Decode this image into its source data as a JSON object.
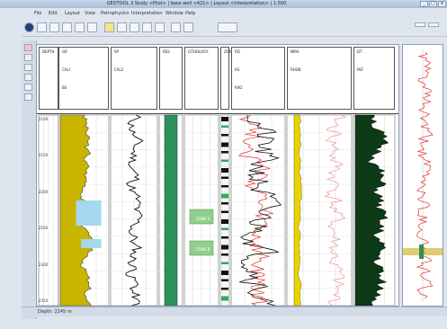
{
  "window": {
    "title": "GEOTOOL 3 Study <Pilot> | base well <421> | Layout <Interpretation> | 1:500",
    "minimize": "_",
    "maximize": "□",
    "close": "x"
  },
  "menu": [
    "File",
    "Edit",
    "Layout",
    "View",
    "Petrophysics",
    "Interpretation",
    "Window",
    "Help"
  ],
  "header": {
    "tracks": [
      {
        "label": "DEPTH"
      },
      {
        "label": "GR",
        "sub": [
          "CALI",
          "BS"
        ]
      },
      {
        "label": "SP",
        "sub": [
          "CAL2"
        ]
      },
      {
        "label": "RES"
      },
      {
        "label": "LITHOLOGY"
      },
      {
        "label": "ZONE"
      },
      {
        "label": "RD",
        "sub": [
          "RS",
          "RXO"
        ]
      },
      {
        "label": "NPHI",
        "sub": [
          "RHOB"
        ]
      },
      {
        "label": "DT",
        "sub": [
          "PEF"
        ]
      },
      {
        "label": "VSH"
      }
    ]
  },
  "depths": [
    "2100",
    "2150",
    "2200",
    "2250",
    "2300",
    "2350"
  ],
  "zones": [
    "ZONE A",
    "ZONE B"
  ],
  "status": "Depth: 2245 m",
  "colors": {
    "gr_fill": "#c9b400",
    "sp_fill": "#e5d400",
    "res_fill": "#2f8f5a",
    "vsh_fill": "#0d3a17",
    "blue": "#a4d8ef",
    "curve_red": "#e0342c"
  }
}
